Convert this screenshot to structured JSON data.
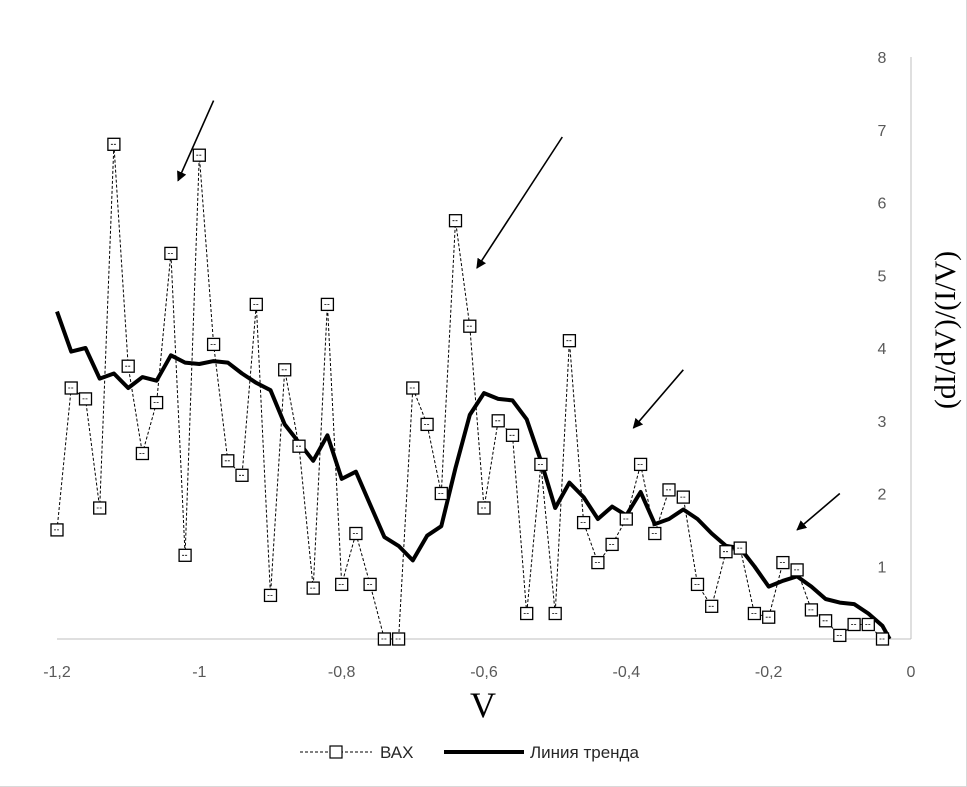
{
  "chart_data": {
    "type": "line",
    "xlabel": "V",
    "ylabel": "(dI/dV)/(I/V)",
    "xlim": [
      -1.2,
      0
    ],
    "ylim": [
      0,
      8
    ],
    "x_ticks": [
      "-1,2",
      "-1",
      "-0,8",
      "-0,6",
      "-0,4",
      "-0,2",
      "0"
    ],
    "y_ticks": [
      "1",
      "2",
      "3",
      "4",
      "5",
      "6",
      "7",
      "8"
    ],
    "grid": false,
    "legend_position": "bottom",
    "series": [
      {
        "name": "ВАХ",
        "style": "dashed-square-markers",
        "color": "#000000",
        "points": [
          [
            -1.2,
            1.5
          ],
          [
            -1.18,
            3.45
          ],
          [
            -1.16,
            3.3
          ],
          [
            -1.14,
            1.8
          ],
          [
            -1.12,
            6.8
          ],
          [
            -1.1,
            3.75
          ],
          [
            -1.08,
            2.55
          ],
          [
            -1.06,
            3.25
          ],
          [
            -1.04,
            5.3
          ],
          [
            -1.02,
            1.15
          ],
          [
            -1.0,
            6.65
          ],
          [
            -0.98,
            4.05
          ],
          [
            -0.96,
            2.45
          ],
          [
            -0.94,
            2.25
          ],
          [
            -0.92,
            4.6
          ],
          [
            -0.9,
            0.6
          ],
          [
            -0.88,
            3.7
          ],
          [
            -0.86,
            2.65
          ],
          [
            -0.84,
            0.7
          ],
          [
            -0.82,
            4.6
          ],
          [
            -0.8,
            0.75
          ],
          [
            -0.78,
            1.45
          ],
          [
            -0.76,
            0.75
          ],
          [
            -0.74,
            0.0
          ],
          [
            -0.72,
            0.0
          ],
          [
            -0.7,
            3.45
          ],
          [
            -0.68,
            2.95
          ],
          [
            -0.66,
            2.0
          ],
          [
            -0.64,
            5.75
          ],
          [
            -0.62,
            4.3
          ],
          [
            -0.6,
            1.8
          ],
          [
            -0.58,
            3.0
          ],
          [
            -0.56,
            2.8
          ],
          [
            -0.54,
            0.35
          ],
          [
            -0.52,
            2.4
          ],
          [
            -0.5,
            0.35
          ],
          [
            -0.48,
            4.1
          ],
          [
            -0.46,
            1.6
          ],
          [
            -0.44,
            1.05
          ],
          [
            -0.42,
            1.3
          ],
          [
            -0.4,
            1.65
          ],
          [
            -0.38,
            2.4
          ],
          [
            -0.36,
            1.45
          ],
          [
            -0.34,
            2.05
          ],
          [
            -0.32,
            1.95
          ],
          [
            -0.3,
            0.75
          ],
          [
            -0.28,
            0.45
          ],
          [
            -0.26,
            1.2
          ],
          [
            -0.24,
            1.25
          ],
          [
            -0.22,
            0.35
          ],
          [
            -0.2,
            0.3
          ],
          [
            -0.18,
            1.05
          ],
          [
            -0.16,
            0.95
          ],
          [
            -0.14,
            0.4
          ],
          [
            -0.12,
            0.25
          ],
          [
            -0.1,
            0.05
          ],
          [
            -0.08,
            0.2
          ],
          [
            -0.06,
            0.2
          ],
          [
            -0.04,
            0.0
          ]
        ]
      },
      {
        "name": "Линия тренда",
        "style": "thick-solid",
        "color": "#000000",
        "points": [
          [
            -1.2,
            4.5
          ],
          [
            -1.18,
            3.95
          ],
          [
            -1.16,
            4.0
          ],
          [
            -1.14,
            3.58
          ],
          [
            -1.12,
            3.65
          ],
          [
            -1.1,
            3.45
          ],
          [
            -1.08,
            3.6
          ],
          [
            -1.06,
            3.55
          ],
          [
            -1.04,
            3.9
          ],
          [
            -1.02,
            3.8
          ],
          [
            -1.0,
            3.78
          ],
          [
            -0.98,
            3.82
          ],
          [
            -0.96,
            3.8
          ],
          [
            -0.94,
            3.65
          ],
          [
            -0.92,
            3.52
          ],
          [
            -0.9,
            3.42
          ],
          [
            -0.88,
            2.95
          ],
          [
            -0.86,
            2.7
          ],
          [
            -0.84,
            2.45
          ],
          [
            -0.82,
            2.8
          ],
          [
            -0.8,
            2.2
          ],
          [
            -0.78,
            2.3
          ],
          [
            -0.76,
            1.85
          ],
          [
            -0.74,
            1.4
          ],
          [
            -0.72,
            1.28
          ],
          [
            -0.7,
            1.08
          ],
          [
            -0.68,
            1.42
          ],
          [
            -0.66,
            1.55
          ],
          [
            -0.64,
            2.35
          ],
          [
            -0.62,
            3.08
          ],
          [
            -0.6,
            3.38
          ],
          [
            -0.58,
            3.3
          ],
          [
            -0.56,
            3.28
          ],
          [
            -0.54,
            3.02
          ],
          [
            -0.52,
            2.45
          ],
          [
            -0.5,
            1.8
          ],
          [
            -0.48,
            2.15
          ],
          [
            -0.46,
            1.95
          ],
          [
            -0.44,
            1.65
          ],
          [
            -0.42,
            1.82
          ],
          [
            -0.4,
            1.7
          ],
          [
            -0.38,
            2.02
          ],
          [
            -0.36,
            1.58
          ],
          [
            -0.34,
            1.65
          ],
          [
            -0.32,
            1.78
          ],
          [
            -0.3,
            1.65
          ],
          [
            -0.28,
            1.45
          ],
          [
            -0.26,
            1.28
          ],
          [
            -0.24,
            1.25
          ],
          [
            -0.22,
            1.0
          ],
          [
            -0.2,
            0.72
          ],
          [
            -0.18,
            0.8
          ],
          [
            -0.16,
            0.86
          ],
          [
            -0.14,
            0.72
          ],
          [
            -0.12,
            0.55
          ],
          [
            -0.1,
            0.5
          ],
          [
            -0.08,
            0.48
          ],
          [
            -0.06,
            0.35
          ],
          [
            -0.04,
            0.18
          ],
          [
            -0.03,
            0.0
          ]
        ]
      }
    ],
    "annotations": [
      {
        "type": "arrow",
        "from": [
          -0.98,
          7.4
        ],
        "to": [
          -1.03,
          6.3
        ]
      },
      {
        "type": "arrow",
        "from": [
          -0.49,
          6.9
        ],
        "to": [
          -0.61,
          5.1
        ]
      },
      {
        "type": "arrow",
        "from": [
          -0.32,
          3.7
        ],
        "to": [
          -0.39,
          2.9
        ]
      },
      {
        "type": "arrow",
        "from": [
          -0.1,
          2.0
        ],
        "to": [
          -0.16,
          1.5
        ]
      }
    ]
  }
}
